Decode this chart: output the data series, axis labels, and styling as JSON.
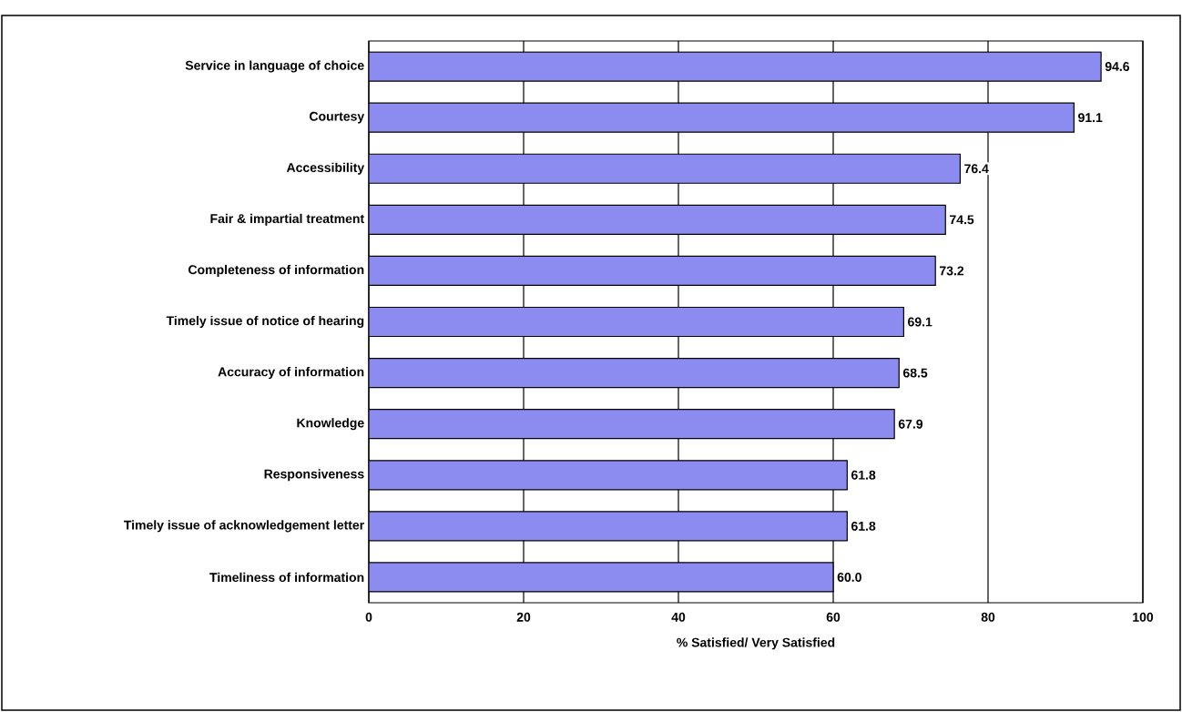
{
  "chart_data": {
    "type": "bar",
    "orientation": "horizontal",
    "xlabel": "% Satisfied/ Very Satisfied",
    "categories": [
      "Service in language of choice",
      "Courtesy",
      "Accessibility",
      "Fair & impartial treatment",
      "Completeness of information",
      "Timely issue of notice of hearing",
      "Accuracy of information",
      "Knowledge",
      "Responsiveness",
      "Timely issue of acknowledgement letter",
      "Timeliness of information"
    ],
    "values": [
      94.6,
      91.1,
      76.4,
      74.5,
      73.2,
      69.1,
      68.5,
      67.9,
      61.8,
      61.8,
      60.0
    ],
    "value_labels": [
      "94.6",
      "91.1",
      "76.4",
      "74.5",
      "73.2",
      "69.1",
      "68.5",
      "67.9",
      "61.8",
      "61.8",
      "60.0"
    ],
    "color": "#8c8cf0",
    "xlim": [
      0,
      100
    ],
    "xticks": [
      0,
      20,
      40,
      60,
      80,
      100
    ],
    "grid": "x"
  }
}
